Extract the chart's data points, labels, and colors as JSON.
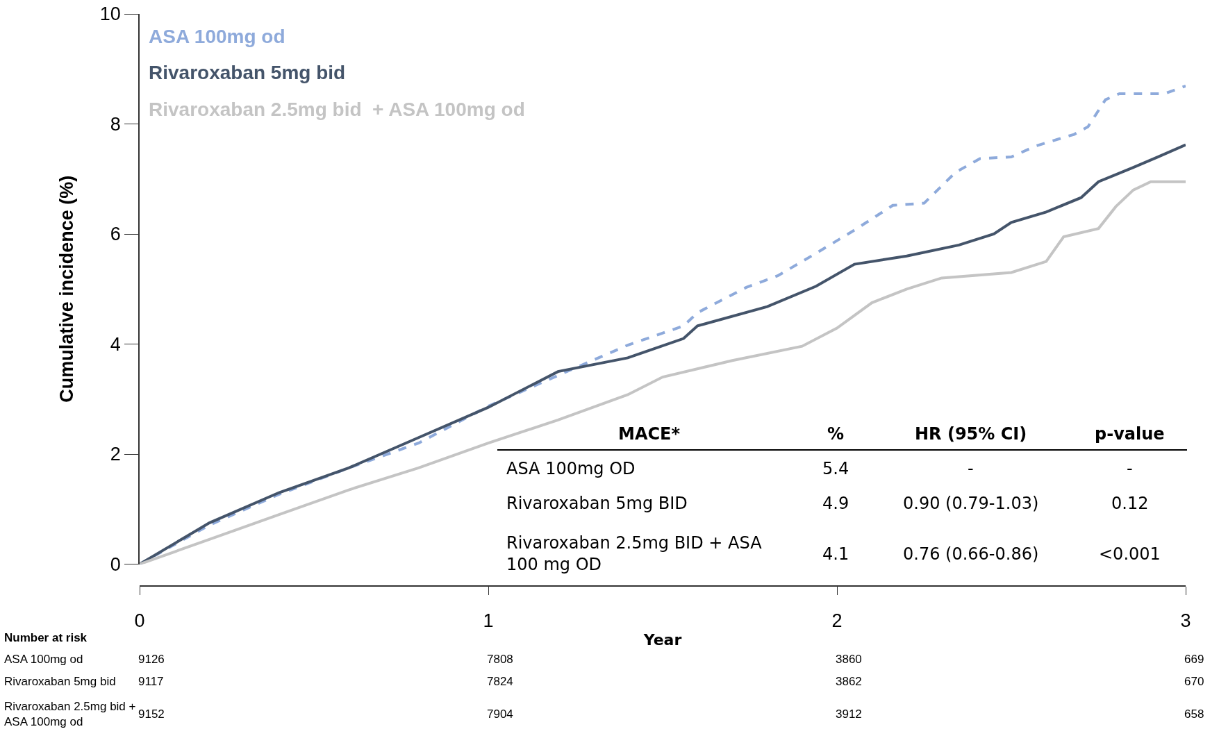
{
  "chart_data": {
    "type": "line",
    "xlabel": "Year",
    "ylabel": "Cumulative incidence (%)",
    "xlim": [
      0,
      3
    ],
    "xticks": [
      0,
      1,
      2,
      3
    ],
    "ylim": [
      0,
      10
    ],
    "yticks": [
      0,
      2,
      4,
      6,
      8,
      10
    ],
    "grid": false,
    "legend": false,
    "series": [
      {
        "name": "ASA 100mg od",
        "color": "#8eaadb",
        "line_style": "dashed",
        "x": [
          0,
          0.2,
          0.4,
          0.6,
          0.8,
          1.0,
          1.2,
          1.4,
          1.56,
          1.6,
          1.74,
          1.83,
          1.94,
          2.05,
          2.16,
          2.25,
          2.34,
          2.41,
          2.5,
          2.57,
          2.68,
          2.72,
          2.77,
          2.81,
          2.94,
          3.0
        ],
        "values": [
          0,
          0.71,
          1.27,
          1.75,
          2.2,
          2.87,
          3.43,
          3.98,
          4.33,
          4.57,
          5.03,
          5.24,
          5.65,
          6.07,
          6.52,
          6.56,
          7.12,
          7.37,
          7.4,
          7.6,
          7.81,
          7.95,
          8.44,
          8.55,
          8.55,
          8.69
        ]
      },
      {
        "name": "Rivaroxaban 5mg bid",
        "color": "#44546a",
        "line_style": "solid",
        "x": [
          0,
          0.2,
          0.4,
          0.6,
          0.8,
          1.0,
          1.2,
          1.4,
          1.56,
          1.6,
          1.8,
          1.94,
          2.05,
          2.2,
          2.35,
          2.45,
          2.5,
          2.6,
          2.7,
          2.75,
          2.85,
          2.92,
          3.0
        ],
        "values": [
          0,
          0.75,
          1.3,
          1.75,
          2.3,
          2.85,
          3.5,
          3.75,
          4.1,
          4.33,
          4.68,
          5.05,
          5.45,
          5.6,
          5.8,
          6.0,
          6.21,
          6.4,
          6.66,
          6.95,
          7.21,
          7.4,
          7.62
        ]
      },
      {
        "name": "Rivaroxaban 2.5mg bid  + ASA 100mg od",
        "color": "#c4c4c4",
        "line_style": "solid",
        "x": [
          0,
          0.2,
          0.4,
          0.6,
          0.8,
          1.0,
          1.2,
          1.4,
          1.5,
          1.7,
          1.9,
          2.0,
          2.1,
          2.2,
          2.3,
          2.5,
          2.6,
          2.65,
          2.75,
          2.8,
          2.85,
          2.9,
          3.0
        ],
        "values": [
          0,
          0.45,
          0.9,
          1.35,
          1.75,
          2.2,
          2.62,
          3.08,
          3.4,
          3.7,
          3.96,
          4.29,
          4.75,
          5.0,
          5.2,
          5.3,
          5.5,
          5.95,
          6.1,
          6.5,
          6.8,
          6.95,
          6.95
        ]
      }
    ],
    "annotations": [
      "Number at risk",
      "ASA 100mg od",
      "Rivaroxaban 5mg bid",
      "Rivaroxaban 2.5mg bid + ASA 100mg od",
      "9126",
      "7808",
      "3860",
      "669",
      "9117",
      "7824",
      "3862",
      "670",
      "9152",
      "7904",
      "3912",
      "658",
      "MACE*",
      "%",
      "HR (95% CI)",
      "p-value",
      "ASA 100mg OD",
      "5.4",
      "-",
      "-",
      "Rivaroxaban 5mg BID",
      "4.9",
      "0.90 (0.79-1.03)",
      "0.12",
      "Rivaroxaban 2.5mg BID + ASA 100 mg OD",
      "4.1",
      "0.76 (0.66-0.86)",
      "<0.001"
    ]
  }
}
